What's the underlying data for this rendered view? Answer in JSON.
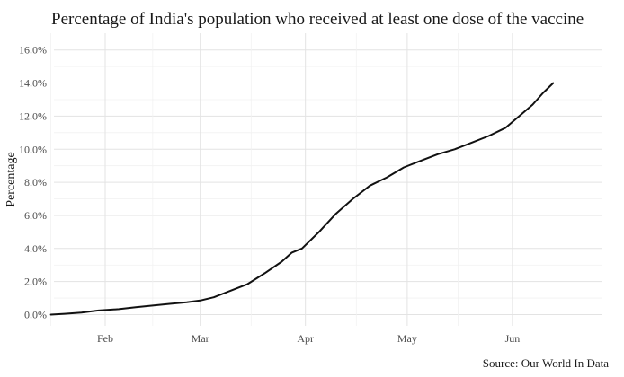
{
  "chart_data": {
    "type": "line",
    "title": "Percentage of India's population who received at least one dose of the vaccine",
    "xlabel": "",
    "ylabel": "Percentage",
    "caption": "Source: Our World In Data",
    "x_ticks": [
      "Feb",
      "Mar",
      "Apr",
      "May",
      "Jun"
    ],
    "y_ticks": [
      "0.0%",
      "2.0%",
      "4.0%",
      "6.0%",
      "8.0%",
      "10.0%",
      "12.0%",
      "14.0%",
      "16.0%"
    ],
    "ylim": [
      0,
      16
    ],
    "xlim": [
      "2021-01-10",
      "2021-06-14"
    ],
    "grid": true,
    "series": [
      {
        "values": [
          {
            "x": "2021-01-16",
            "y": 0.0
          },
          {
            "x": "2021-01-20",
            "y": 0.05
          },
          {
            "x": "2021-01-25",
            "y": 0.12
          },
          {
            "x": "2021-01-30",
            "y": 0.25
          },
          {
            "x": "2021-02-05",
            "y": 0.33
          },
          {
            "x": "2021-02-10",
            "y": 0.45
          },
          {
            "x": "2021-02-15",
            "y": 0.55
          },
          {
            "x": "2021-02-20",
            "y": 0.65
          },
          {
            "x": "2021-02-25",
            "y": 0.75
          },
          {
            "x": "2021-03-01",
            "y": 0.85
          },
          {
            "x": "2021-03-05",
            "y": 1.05
          },
          {
            "x": "2021-03-10",
            "y": 1.45
          },
          {
            "x": "2021-03-15",
            "y": 1.85
          },
          {
            "x": "2021-03-20",
            "y": 2.5
          },
          {
            "x": "2021-03-25",
            "y": 3.2
          },
          {
            "x": "2021-03-28",
            "y": 3.75
          },
          {
            "x": "2021-03-31",
            "y": 4.0
          },
          {
            "x": "2021-04-05",
            "y": 5.0
          },
          {
            "x": "2021-04-10",
            "y": 6.1
          },
          {
            "x": "2021-04-15",
            "y": 7.0
          },
          {
            "x": "2021-04-20",
            "y": 7.8
          },
          {
            "x": "2021-04-25",
            "y": 8.3
          },
          {
            "x": "2021-04-30",
            "y": 8.9
          },
          {
            "x": "2021-05-05",
            "y": 9.3
          },
          {
            "x": "2021-05-10",
            "y": 9.7
          },
          {
            "x": "2021-05-15",
            "y": 10.0
          },
          {
            "x": "2021-05-20",
            "y": 10.4
          },
          {
            "x": "2021-05-25",
            "y": 10.8
          },
          {
            "x": "2021-05-30",
            "y": 11.3
          },
          {
            "x": "2021-06-03",
            "y": 12.0
          },
          {
            "x": "2021-06-07",
            "y": 12.7
          },
          {
            "x": "2021-06-10",
            "y": 13.4
          },
          {
            "x": "2021-06-13",
            "y": 14.0
          }
        ]
      }
    ],
    "line_color": "#111111"
  }
}
